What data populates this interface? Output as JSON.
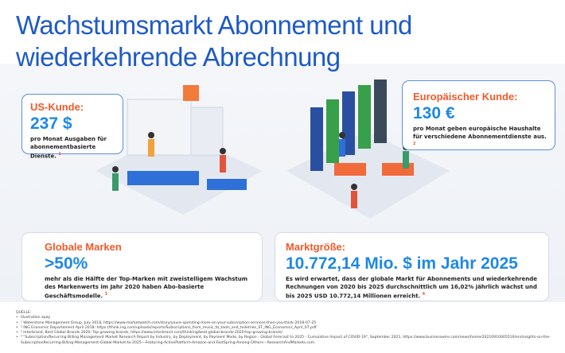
{
  "title": "Wachstumsmarkt Abonnement und wiederkehrende Abrechnung",
  "us": {
    "label": "US-Kunde:",
    "value": "237 $",
    "text": "pro Monat Ausgaben für abonnementbasierte Dienste.",
    "note": "1"
  },
  "eu": {
    "label": "Europäischer Kunde:",
    "value": "130 €",
    "text": "pro Monat geben europäische Haushalte für verschiedene Abonnementdienste aus.",
    "note": "2"
  },
  "brands": {
    "label": "Globale Marken",
    "value": ">50%",
    "text": "mehr als die Hälfte der Top-Marken mit zweistelligem Wachstum des Markenwerts im Jahr 2020 haben Abo-basierte Geschäftsmodelle.",
    "note": "3"
  },
  "market": {
    "label": "Marktgröße:",
    "value": "10.772,14 Mio. $ im Jahr 2025",
    "text": "Es wird erwartet, dass der globale Markt für Abonnements und wiederkehrende Rechnungen von 2020 bis 2025 durchschnittlich um 16,02% jährlich wächst und bis 2025 USD 10.772,14 Millionen erreicht.",
    "note": "4"
  },
  "sources": {
    "heading": "QUELLE:",
    "items": [
      "Illustration epay",
      "¹ Waterstone Management Group, July 2018, https://www.marketwatch.com/story/youre-spending-more-on-your-subscription-services-than-you-think-2018-07-25",
      "² ING Economic Departement April 2018: https://think.ing.com/uploads/reports/Subscriptions_from_music_to_tools_and_toiletries_ST_ING_Economics_April_07.pdf",
      "³ Interbrand, Best Global Brands 2020: Top growing brands, https://www.interbrand.com/thinking/best-global-brands-2020-top-growing-brands/",
      "⁴ \"Subscription/Recurring Billing Management Market Research Report by Industry, by Deployment, by Payment Mode, by Region - Global Forecast to 2025 - Cumulative Impact of COVID-19\", September 2021, https://www.businesswire.com/news/home/20210910005516/en/Insights-on-the-SubscriptionRecurring-Billing-Management-Global-Market-to-2025---Featuring-ActivePlatform-Amazon-and-FastSpring-Among-Others---ResearchAndMarkets.com"
    ]
  },
  "colors": {
    "title": "#1e5bc6",
    "accent": "#ef5a2a",
    "value": "#1e88e5"
  }
}
